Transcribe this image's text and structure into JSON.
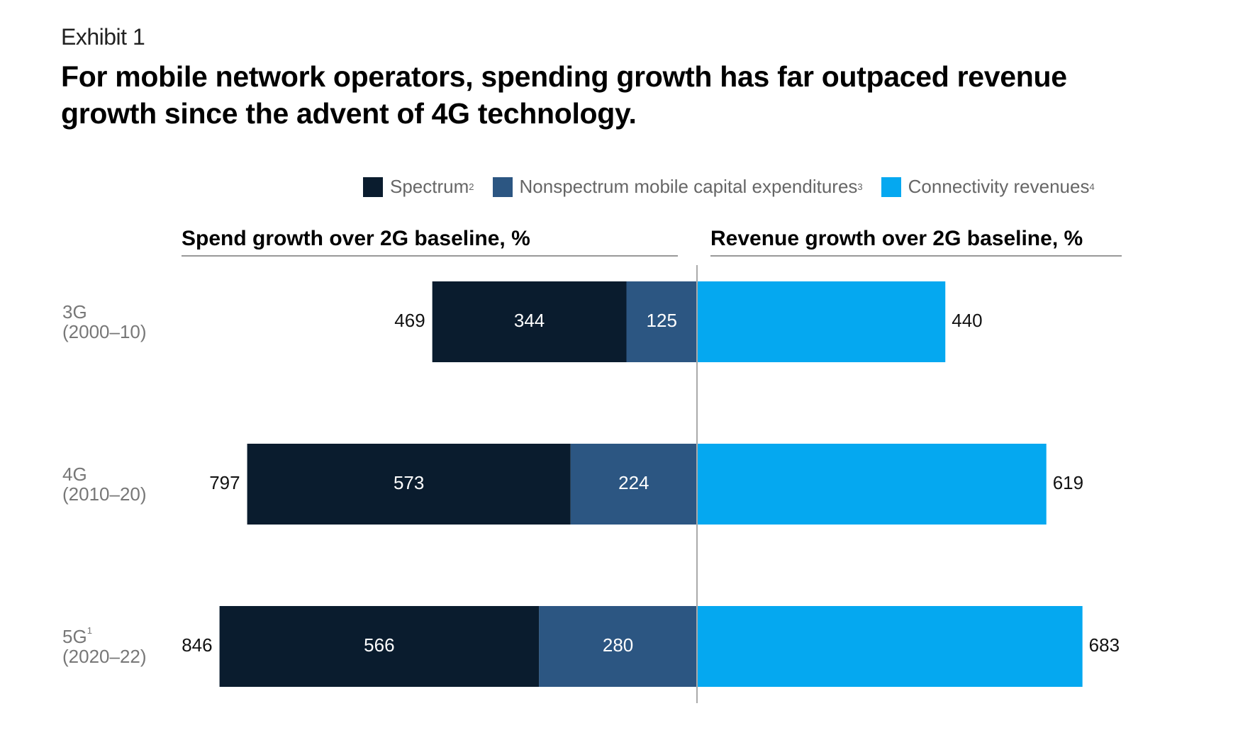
{
  "exhibit_label": "Exhibit 1",
  "title": "For mobile network operators, spending growth has far outpaced revenue growth since the advent of 4G technology.",
  "legend": [
    {
      "label": "Spectrum",
      "footnote": "2",
      "color": "#0a1c2e"
    },
    {
      "label": "Nonspectrum mobile capital expenditures",
      "footnote": "3",
      "color": "#2c5682"
    },
    {
      "label": "Connectivity revenues",
      "footnote": "4",
      "color": "#05a8f0"
    }
  ],
  "chart_data": {
    "type": "bar",
    "orientation": "horizontal-diverging",
    "left_panel_title": "Spend growth over 2G baseline, %",
    "right_panel_title": "Revenue growth over 2G baseline, %",
    "categories": [
      {
        "name": "3G",
        "footnote": "",
        "period": "(2000–10)"
      },
      {
        "name": "4G",
        "footnote": "",
        "period": "(2010–20)"
      },
      {
        "name": "5G",
        "footnote": "1",
        "period": "(2020–22)"
      }
    ],
    "spend_series": [
      {
        "name": "Spectrum",
        "color": "#0a1c2e",
        "values": [
          344,
          573,
          566
        ]
      },
      {
        "name": "Nonspectrum mobile capital expenditures",
        "color": "#2c5682",
        "values": [
          125,
          224,
          280
        ]
      }
    ],
    "spend_totals": [
      469,
      797,
      846
    ],
    "revenue_series": [
      {
        "name": "Connectivity revenues",
        "color": "#05a8f0",
        "values": [
          440,
          619,
          683
        ]
      }
    ]
  }
}
